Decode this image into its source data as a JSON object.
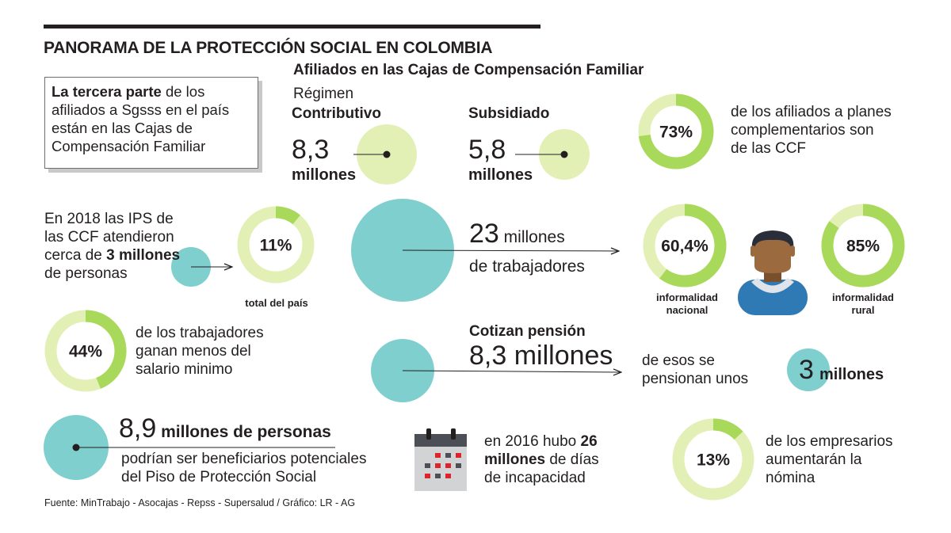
{
  "header": {
    "title": "PANORAMA DE LA PROTECCIÓN SOCIAL EN COLOMBIA",
    "subtitle": "Afiliados en las Cajas de Compensación Familiar",
    "regimen_label": "Régimen"
  },
  "intro_box": {
    "bold": "La tercera parte",
    "rest1": " de los",
    "line2": "afiliados a Sgsss en el país",
    "line3": "están en las Cajas de",
    "line4": "Compensación Familiar"
  },
  "contributivo": {
    "label": "Contributivo",
    "value": "8,3",
    "unit": "millones"
  },
  "subsidiado": {
    "label": "Subsidiado",
    "value": "5,8",
    "unit": "millones"
  },
  "complementarios": {
    "line1": "de los afiliados a planes",
    "line2": "complementarios son",
    "line3": "de las CCF"
  },
  "ips": {
    "line1": "En 2018 las IPS de",
    "line2": "las CCF atendieron",
    "line3a": "cerca de ",
    "line3b": "3 millones",
    "line4": "de personas",
    "caption": "total del país"
  },
  "trabajadores": {
    "value": "23",
    "unit": " millones",
    "line2": "de trabajadores"
  },
  "informalidad": {
    "nacional_1": "informalidad",
    "nacional_2": "nacional",
    "rural_1": "informalidad",
    "rural_2": "rural"
  },
  "salario": {
    "line1": "de los trabajadores",
    "line2": "ganan menos del",
    "line3": "salario minimo"
  },
  "pension": {
    "label": "Cotizan pensión",
    "value": "8,3 millones",
    "txt1": "de esos se",
    "txt2": "pensionan unos",
    "num": "3",
    "unit": "millones"
  },
  "piso": {
    "value": "8,9",
    "unit": " millones de  personas",
    "line2": "podrían ser beneficiarios potenciales",
    "line3": "del Piso de Protección Social"
  },
  "incapacidad": {
    "l1a": "en 2016 hubo ",
    "l1b": "26",
    "l2a": "millones",
    "l2b": " de días",
    "l3": "de incapacidad"
  },
  "empresarios": {
    "line1": "de los empresarios",
    "line2": "aumentarán la",
    "line3": "nómina"
  },
  "source": "Fuente: MinTrabajo - Asocajas - Repss - Supersalud / Gráfico: LR - AG",
  "colors": {
    "ring_light": "#e2f0b6",
    "ring_dark": "#a9d95b",
    "circle_light": "#e2f0b6",
    "teal": "#7fcfcf",
    "text": "#231f20",
    "person_skin": "#9b6a3f",
    "person_hair": "#2a2d3a",
    "person_shirt": "#2f79b5",
    "calendar_dark": "#4d4f57",
    "calendar_red": "#e0222a",
    "calendar_gray": "#d1d3d4"
  },
  "chart_data": {
    "type": "pie",
    "donuts": [
      {
        "label": "73%",
        "value": 73
      },
      {
        "label": "11%",
        "value": 11
      },
      {
        "label": "60,4%",
        "value": 60.4
      },
      {
        "label": "85%",
        "value": 85
      },
      {
        "label": "44%",
        "value": 44
      },
      {
        "label": "13%",
        "value": 13
      }
    ]
  }
}
